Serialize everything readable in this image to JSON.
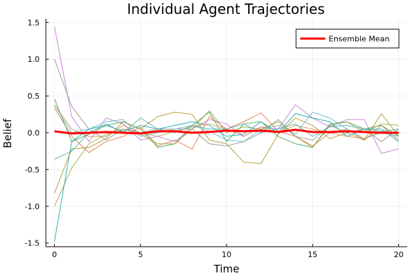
{
  "chart_data": {
    "type": "line",
    "title": "Individual Agent Trajectories",
    "xlabel": "Time",
    "ylabel": "Belief",
    "xlim": [
      -0.5,
      20.5
    ],
    "ylim": [
      -1.55,
      1.55
    ],
    "xticks": [
      0,
      5,
      10,
      15,
      20
    ],
    "yticks": [
      -1.5,
      -1.0,
      -0.5,
      0.0,
      0.5,
      1.0,
      1.5
    ],
    "xtick_labels": [
      "0",
      "5",
      "10",
      "15",
      "20"
    ],
    "ytick_labels": [
      "-1.5",
      "-1.0",
      "-0.5",
      "0.0",
      "0.5",
      "1.0",
      "1.5"
    ],
    "grid": true,
    "legend": {
      "position": "top-right",
      "entries": [
        "Ensemble Mean"
      ]
    },
    "x": [
      0,
      1,
      2,
      3,
      4,
      5,
      6,
      7,
      8,
      9,
      10,
      11,
      12,
      13,
      14,
      15,
      16,
      17,
      18,
      19,
      20
    ],
    "series": [
      {
        "color": "#e26f46",
        "values": [
          0.34,
          -0.05,
          -0.27,
          -0.12,
          -0.05,
          0.08,
          -0.18,
          -0.1,
          -0.22,
          0.22,
          0.05,
          0.15,
          0.27,
          0.02,
          -0.05,
          -0.18,
          0.0,
          0.05,
          -0.1,
          0.1,
          -0.1
        ]
      },
      {
        "color": "#c271d2",
        "values": [
          1.44,
          0.22,
          -0.12,
          0.2,
          0.12,
          -0.1,
          -0.05,
          -0.12,
          0.05,
          0.18,
          0.12,
          -0.05,
          0.08,
          0.05,
          0.38,
          0.2,
          0.08,
          0.18,
          0.18,
          -0.28,
          -0.22
        ]
      },
      {
        "color": "#3da44d",
        "values": [
          0.46,
          -0.12,
          -0.02,
          0.1,
          0.15,
          0.05,
          -0.2,
          -0.15,
          0.1,
          0.28,
          -0.12,
          0.12,
          0.15,
          -0.05,
          -0.15,
          -0.2,
          0.12,
          0.15,
          0.05,
          0.1,
          -0.05
        ]
      },
      {
        "color": "#ac8d18",
        "values": [
          -0.82,
          -0.22,
          -0.2,
          -0.08,
          0.15,
          0.05,
          0.22,
          0.28,
          0.25,
          -0.1,
          -0.15,
          -0.4,
          -0.42,
          -0.02,
          0.2,
          0.1,
          -0.08,
          0.0,
          -0.1,
          0.26,
          -0.05
        ]
      },
      {
        "color": "#00a9ad",
        "values": [
          -1.48,
          -0.12,
          0.05,
          0.1,
          0.02,
          0.1,
          0.05,
          0.1,
          0.15,
          0.1,
          -0.05,
          -0.02,
          0.15,
          0.0,
          0.26,
          0.2,
          0.15,
          -0.05,
          0.05,
          0.05,
          -0.12
        ]
      },
      {
        "color": "#878787",
        "values": [
          1.0,
          0.36,
          0.05,
          -0.1,
          0.05,
          0.0,
          0.05,
          0.05,
          0.05,
          -0.15,
          -0.18,
          -0.12,
          0.0,
          0.18,
          -0.05,
          -0.1,
          0.1,
          0.0,
          0.05,
          -0.12,
          0.05
        ]
      },
      {
        "color": "#9aa23a",
        "values": [
          -1.0,
          -0.48,
          -0.15,
          -0.02,
          0.05,
          -0.02,
          -0.15,
          -0.15,
          0.05,
          0.3,
          0.0,
          0.08,
          0.05,
          0.15,
          -0.05,
          -0.2,
          0.1,
          0.15,
          0.0,
          0.12,
          0.1
        ]
      },
      {
        "color": "#5db7c8",
        "values": [
          0.38,
          0.0,
          0.05,
          0.15,
          0.18,
          -0.05,
          0.0,
          0.05,
          0.1,
          0.02,
          -0.1,
          -0.12,
          0.05,
          0.1,
          -0.02,
          0.28,
          0.2,
          0.05,
          -0.08,
          0.0,
          -0.05
        ]
      },
      {
        "color": "#d08f4e",
        "values": [
          0.38,
          0.05,
          -0.05,
          -0.05,
          0.1,
          0.0,
          -0.05,
          0.02,
          0.08,
          0.12,
          0.05,
          -0.05,
          0.08,
          0.0,
          0.1,
          0.05,
          0.0,
          -0.05,
          -0.08,
          0.02,
          0.0
        ]
      },
      {
        "color": "#53a5a3",
        "values": [
          -0.36,
          -0.25,
          0.0,
          0.12,
          0.0,
          0.2,
          0.05,
          0.0,
          0.1,
          0.05,
          0.05,
          0.12,
          0.0,
          0.05,
          0.12,
          -0.05,
          0.08,
          0.1,
          0.05,
          0.02,
          0.05
        ]
      }
    ],
    "mean": {
      "name": "Ensemble Mean",
      "color": "#ff0000",
      "values": [
        0.02,
        -0.01,
        0.0,
        0.01,
        0.0,
        -0.01,
        0.02,
        0.02,
        0.0,
        0.01,
        0.03,
        0.02,
        0.03,
        0.01,
        0.04,
        0.01,
        0.01,
        0.02,
        0.01,
        0.0,
        0.0
      ]
    }
  }
}
